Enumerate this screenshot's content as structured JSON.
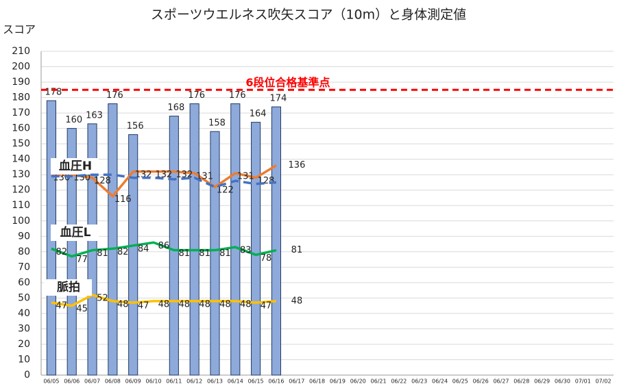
{
  "chart_data": {
    "type": "bar",
    "title": "スポーツウエルネス吹矢スコア（10m）と身体測定値",
    "y_label": "スコア",
    "categories": [
      "06/05",
      "06/06",
      "06/07",
      "06/08",
      "06/09",
      "06/10",
      "06/11",
      "06/12",
      "06/13",
      "06/14",
      "06/15",
      "06/16",
      "06/17",
      "06/18",
      "06/19",
      "06/20",
      "06/21",
      "06/22",
      "06/23",
      "06/24",
      "06/25",
      "06/26",
      "06/27",
      "06/28",
      "06/29",
      "06/30",
      "07/01",
      "07/02"
    ],
    "values": [
      178,
      160,
      163,
      176,
      156,
      null,
      168,
      176,
      158,
      176,
      164,
      174,
      null,
      null,
      null,
      null,
      null,
      null,
      null,
      null,
      null,
      null,
      null,
      null,
      null,
      null,
      null,
      null
    ],
    "color": "#8eaadb",
    "lines": [
      {
        "name": "血圧H",
        "color": "#ed7d31",
        "values": [
          130,
          130,
          128,
          116,
          132,
          132,
          132,
          131,
          122,
          131,
          128,
          136,
          null,
          null,
          null,
          null,
          null,
          null,
          null,
          null,
          null,
          null,
          null,
          null,
          null,
          null,
          null,
          null
        ]
      },
      {
        "color": "#4472c4",
        "dashed": true,
        "values": [
          129,
          129,
          130,
          130,
          128,
          128,
          127,
          128,
          122,
          126,
          124,
          125,
          null,
          null,
          null,
          null,
          null,
          null,
          null,
          null,
          null,
          null,
          null,
          null,
          null,
          null,
          null,
          null
        ]
      },
      {
        "name": "血圧L",
        "color": "#00b050",
        "values": [
          82,
          77,
          81,
          82,
          84,
          86,
          81,
          81,
          81,
          83,
          78,
          81,
          null,
          null,
          null,
          null,
          null,
          null,
          null,
          null,
          null,
          null,
          null,
          null,
          null,
          null,
          null,
          null
        ]
      },
      {
        "name": "脈拍",
        "color": "#ffc000",
        "values": [
          47,
          45,
          52,
          48,
          47,
          48,
          48,
          48,
          48,
          48,
          47,
          48,
          null,
          null,
          null,
          null,
          null,
          null,
          null,
          null,
          null,
          null,
          null,
          null,
          null,
          null,
          null,
          null
        ]
      }
    ],
    "reference": {
      "value": 185,
      "label": "6段位合格基準点",
      "color": "#ff0000"
    },
    "ylim": [
      0,
      210
    ],
    "yticks": [
      0,
      10,
      20,
      30,
      40,
      50,
      60,
      70,
      80,
      90,
      100,
      110,
      120,
      130,
      140,
      150,
      160,
      170,
      180,
      190,
      200,
      210
    ],
    "grid": true
  }
}
